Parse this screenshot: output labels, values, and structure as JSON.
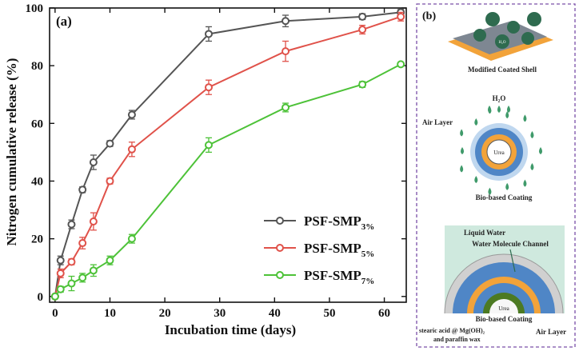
{
  "panel_a_label": "(a)",
  "panel_b_label": "(b)",
  "chart_data": {
    "type": "line",
    "title": "",
    "xlabel": "Incubation time (days)",
    "ylabel": "Nitrogen cumulative release (%)",
    "xlim": [
      -1,
      64
    ],
    "ylim": [
      -2,
      100
    ],
    "xticks": [
      0,
      10,
      20,
      30,
      40,
      50,
      60
    ],
    "yticks": [
      0,
      20,
      40,
      60,
      80,
      100
    ],
    "legend_position": "bottom-right",
    "series": [
      {
        "name": "PSF-SMP3%",
        "name_main": "PSF-SMP",
        "name_sub": "3%",
        "color": "#555555",
        "x": [
          0,
          1,
          3,
          5,
          7,
          10,
          14,
          28,
          42,
          56,
          63
        ],
        "y": [
          0,
          12.5,
          25,
          37,
          46.5,
          53,
          63,
          91,
          95.5,
          97,
          98.5
        ],
        "err": [
          0,
          1.5,
          1.5,
          1,
          2.5,
          1,
          1.5,
          2.5,
          2,
          1,
          1
        ]
      },
      {
        "name": "PSF-SMP5%",
        "name_main": "PSF-SMP",
        "name_sub": "5%",
        "color": "#e0524a",
        "x": [
          0,
          1,
          3,
          5,
          7,
          10,
          14,
          28,
          42,
          56,
          63
        ],
        "y": [
          0,
          8,
          12,
          18.5,
          26,
          40,
          51,
          72.5,
          85,
          92.5,
          97
        ],
        "err": [
          0,
          1.5,
          1,
          2,
          3,
          1,
          2.5,
          2.5,
          3.5,
          1.5,
          1.5
        ]
      },
      {
        "name": "PSF-SMP7%",
        "name_main": "PSF-SMP",
        "name_sub": "7%",
        "color": "#4dc238",
        "x": [
          0,
          1,
          3,
          5,
          7,
          10,
          14,
          28,
          42,
          56,
          63
        ],
        "y": [
          0,
          2.5,
          4.5,
          6.5,
          9,
          12.5,
          20,
          52.5,
          65.5,
          73.5,
          80.5
        ],
        "err": [
          0,
          1,
          2.5,
          1.5,
          2,
          1.5,
          1.5,
          2.5,
          1.5,
          1,
          0.5
        ]
      }
    ]
  },
  "schematic": {
    "shell_caption": "Modified Coated Shell",
    "shell_chip_label": "H₂O",
    "h2o_label": "H₂O",
    "air_layer_label": "Air Layer",
    "urea_label": "Urea",
    "bio_coating_label": "Bio-based Coating",
    "liquid_water_label": "Liquid Water",
    "water_channel_label": "Water Molecule Channel",
    "urea_label_2": "Urea",
    "bio_coating_label_2": "Bio-based Coating",
    "stearic_label_line1": "stearic acid @ Mg(OH)₂",
    "stearic_label_line2": "and paraffin wax",
    "air_layer_label_2": "Air Layer"
  },
  "colors": {
    "axis": "#111111",
    "frame_dash": "#7a4fa8",
    "coating_orange": "#f2a33a",
    "coating_blue": "#4f86c6",
    "water_green": "#3f9a6a",
    "teal_panel": "#cfe9de"
  }
}
